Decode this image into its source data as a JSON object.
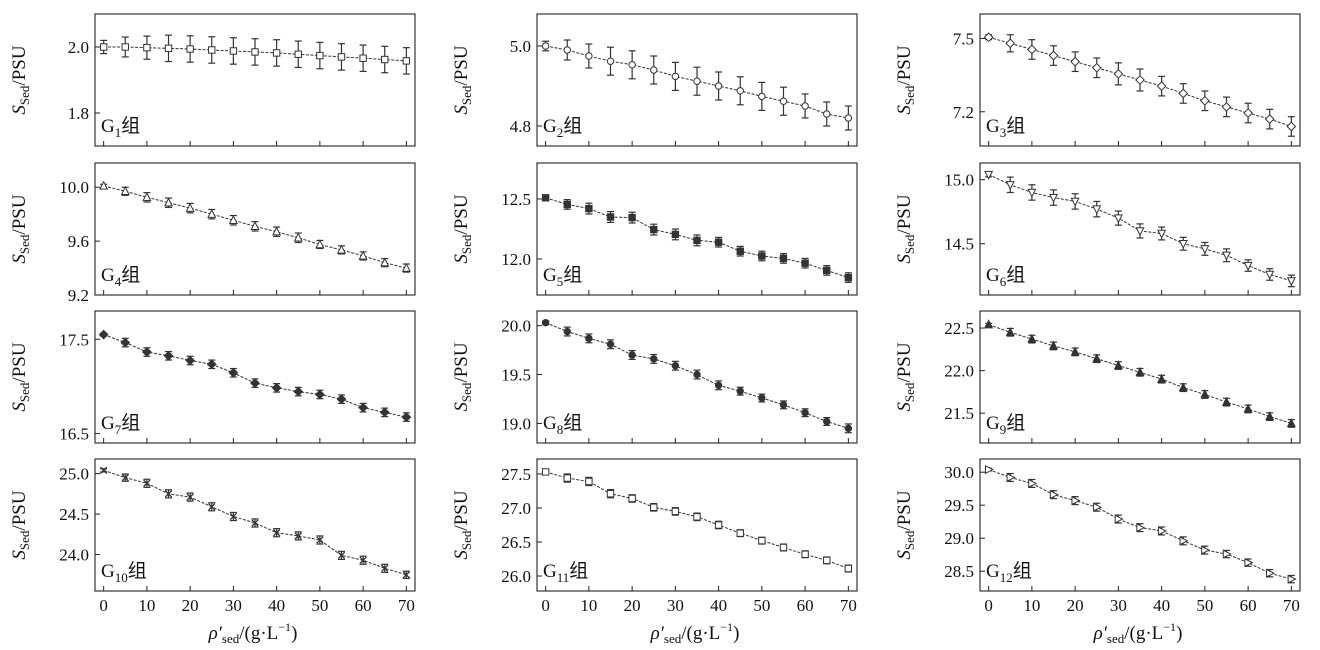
{
  "chart_data": [
    {
      "type": "line",
      "group_label": {
        "main": "G",
        "sub": "1",
        "suffix": "组"
      },
      "ylabel": {
        "main": "S",
        "sub": "Sed",
        "unit": "/PSU"
      },
      "ylim": [
        1.7,
        2.1
      ],
      "yticks": [
        1.8,
        2.0
      ],
      "marker": "square",
      "x": [
        0,
        5,
        10,
        15,
        20,
        25,
        30,
        35,
        40,
        45,
        50,
        55,
        60,
        65,
        70
      ],
      "y": [
        2.0,
        2.0,
        1.998,
        1.996,
        1.994,
        1.991,
        1.988,
        1.985,
        1.982,
        1.978,
        1.974,
        1.97,
        1.966,
        1.962,
        1.958
      ],
      "error": [
        0.02,
        0.03,
        0.035,
        0.04,
        0.04,
        0.04,
        0.04,
        0.04,
        0.04,
        0.04,
        0.04,
        0.04,
        0.04,
        0.04,
        0.04
      ]
    },
    {
      "type": "line",
      "group_label": {
        "main": "G",
        "sub": "2",
        "suffix": "组"
      },
      "ylabel": {
        "main": "S",
        "sub": "Sed",
        "unit": "/PSU"
      },
      "ylim": [
        4.75,
        5.08
      ],
      "yticks": [
        4.8,
        5.0
      ],
      "marker": "circle",
      "x": [
        0,
        5,
        10,
        15,
        20,
        25,
        30,
        35,
        40,
        45,
        50,
        55,
        60,
        65,
        70
      ],
      "y": [
        5.0,
        4.99,
        4.975,
        4.962,
        4.953,
        4.94,
        4.924,
        4.912,
        4.9,
        4.888,
        4.874,
        4.862,
        4.85,
        4.83,
        4.82
      ],
      "error": [
        0.012,
        0.025,
        0.03,
        0.035,
        0.035,
        0.035,
        0.035,
        0.035,
        0.035,
        0.035,
        0.035,
        0.035,
        0.03,
        0.03,
        0.03
      ]
    },
    {
      "type": "line",
      "group_label": {
        "main": "G",
        "sub": "3",
        "suffix": "组"
      },
      "ylabel": {
        "main": "S",
        "sub": "Sed",
        "unit": "/PSU"
      },
      "ylim": [
        7.06,
        7.6
      ],
      "yticks": [
        7.2,
        7.5
      ],
      "marker": "diamond",
      "x": [
        0,
        5,
        10,
        15,
        20,
        25,
        30,
        35,
        40,
        45,
        50,
        55,
        60,
        65,
        70
      ],
      "y": [
        7.505,
        7.48,
        7.455,
        7.43,
        7.405,
        7.38,
        7.355,
        7.33,
        7.305,
        7.275,
        7.245,
        7.22,
        7.195,
        7.17,
        7.14
      ],
      "error": [
        0.01,
        0.035,
        0.04,
        0.04,
        0.04,
        0.04,
        0.045,
        0.045,
        0.04,
        0.04,
        0.04,
        0.04,
        0.04,
        0.04,
        0.04
      ]
    },
    {
      "type": "line",
      "group_label": {
        "main": "G",
        "sub": "4",
        "suffix": "组"
      },
      "ylabel": {
        "main": "S",
        "sub": "Sed",
        "unit": "/PSU"
      },
      "ylim": [
        9.2,
        10.18
      ],
      "yticks": [
        9.2,
        9.6,
        10.0
      ],
      "marker": "triangle-up",
      "x": [
        0,
        5,
        10,
        15,
        20,
        25,
        30,
        35,
        40,
        45,
        50,
        55,
        60,
        65,
        70
      ],
      "y": [
        10.01,
        9.97,
        9.925,
        9.885,
        9.845,
        9.8,
        9.755,
        9.71,
        9.67,
        9.625,
        9.575,
        9.535,
        9.49,
        9.44,
        9.4
      ],
      "error": [
        0.012,
        0.03,
        0.035,
        0.035,
        0.035,
        0.035,
        0.035,
        0.035,
        0.035,
        0.035,
        0.03,
        0.03,
        0.03,
        0.03,
        0.03
      ]
    },
    {
      "type": "line",
      "group_label": {
        "main": "G",
        "sub": "5",
        "suffix": "组"
      },
      "ylabel": {
        "main": "S",
        "sub": "Sed",
        "unit": "/PSU"
      },
      "ylim": [
        11.7,
        12.8
      ],
      "yticks": [
        12.0,
        12.5
      ],
      "marker": "filled-square",
      "x": [
        0,
        5,
        10,
        15,
        20,
        25,
        30,
        35,
        40,
        45,
        50,
        55,
        60,
        65,
        70
      ],
      "y": [
        12.51,
        12.455,
        12.42,
        12.35,
        12.345,
        12.245,
        12.205,
        12.155,
        12.14,
        12.065,
        12.025,
        12.005,
        11.965,
        11.905,
        11.845
      ],
      "error": [
        0.015,
        0.04,
        0.045,
        0.045,
        0.045,
        0.045,
        0.045,
        0.045,
        0.04,
        0.04,
        0.04,
        0.04,
        0.04,
        0.04,
        0.04
      ]
    },
    {
      "type": "line",
      "group_label": {
        "main": "G",
        "sub": "6",
        "suffix": "组"
      },
      "ylabel": {
        "main": "S",
        "sub": "Sed",
        "unit": "/PSU"
      },
      "ylim": [
        14.1,
        15.13
      ],
      "yticks": [
        14.5,
        15.0
      ],
      "marker": "triangle-down",
      "x": [
        0,
        5,
        10,
        15,
        20,
        25,
        30,
        35,
        40,
        45,
        50,
        55,
        60,
        65,
        70
      ],
      "y": [
        15.04,
        14.96,
        14.9,
        14.86,
        14.83,
        14.77,
        14.7,
        14.6,
        14.58,
        14.5,
        14.46,
        14.41,
        14.33,
        14.26,
        14.21
      ],
      "error": [
        0.018,
        0.06,
        0.06,
        0.06,
        0.06,
        0.06,
        0.055,
        0.055,
        0.05,
        0.05,
        0.05,
        0.05,
        0.045,
        0.045,
        0.045
      ]
    },
    {
      "type": "line",
      "group_label": {
        "main": "G",
        "sub": "7",
        "suffix": "组"
      },
      "ylabel": {
        "main": "S",
        "sub": "Sed",
        "unit": "/PSU"
      },
      "ylim": [
        16.4,
        17.8
      ],
      "yticks": [
        16.5,
        17.5
      ],
      "marker": "filled-diamond",
      "x": [
        0,
        5,
        10,
        15,
        20,
        25,
        30,
        35,
        40,
        45,
        50,
        55,
        60,
        65,
        70
      ],
      "y": [
        17.55,
        17.465,
        17.365,
        17.325,
        17.275,
        17.235,
        17.145,
        17.035,
        16.985,
        16.945,
        16.915,
        16.865,
        16.775,
        16.725,
        16.675
      ],
      "error": [
        0.015,
        0.045,
        0.045,
        0.045,
        0.045,
        0.045,
        0.045,
        0.045,
        0.045,
        0.045,
        0.045,
        0.045,
        0.045,
        0.045,
        0.045
      ]
    },
    {
      "type": "line",
      "group_label": {
        "main": "G",
        "sub": "8",
        "suffix": "组"
      },
      "ylabel": {
        "main": "S",
        "sub": "Sed",
        "unit": "/PSU"
      },
      "ylim": [
        18.8,
        20.15
      ],
      "yticks": [
        19.0,
        19.5,
        20.0
      ],
      "marker": "filled-circle",
      "x": [
        0,
        5,
        10,
        15,
        20,
        25,
        30,
        35,
        40,
        45,
        50,
        55,
        60,
        65,
        70
      ],
      "y": [
        20.03,
        19.94,
        19.87,
        19.81,
        19.7,
        19.66,
        19.59,
        19.5,
        19.39,
        19.33,
        19.26,
        19.19,
        19.11,
        19.02,
        18.95
      ],
      "error": [
        0.018,
        0.045,
        0.045,
        0.045,
        0.045,
        0.045,
        0.045,
        0.045,
        0.045,
        0.04,
        0.04,
        0.04,
        0.04,
        0.04,
        0.045
      ]
    },
    {
      "type": "line",
      "group_label": {
        "main": "G",
        "sub": "9",
        "suffix": "组"
      },
      "ylabel": {
        "main": "S",
        "sub": "Sed",
        "unit": "/PSU"
      },
      "ylim": [
        21.15,
        22.7
      ],
      "yticks": [
        21.5,
        22.0,
        22.5
      ],
      "marker": "filled-triangle",
      "x": [
        0,
        5,
        10,
        15,
        20,
        25,
        30,
        35,
        40,
        45,
        50,
        55,
        60,
        65,
        70
      ],
      "y": [
        22.54,
        22.45,
        22.37,
        22.29,
        22.22,
        22.14,
        22.06,
        21.98,
        21.9,
        21.8,
        21.72,
        21.63,
        21.55,
        21.46,
        21.38
      ],
      "error": [
        0.015,
        0.045,
        0.045,
        0.045,
        0.045,
        0.045,
        0.045,
        0.045,
        0.045,
        0.045,
        0.045,
        0.045,
        0.045,
        0.045,
        0.045
      ]
    },
    {
      "type": "line",
      "group_label": {
        "main": "G",
        "sub": "10",
        "suffix": "组"
      },
      "ylabel": {
        "main": "S",
        "sub": "Sed",
        "unit": "/PSU"
      },
      "ylim": [
        23.55,
        25.18
      ],
      "yticks": [
        24.0,
        24.5,
        25.0
      ],
      "marker": "x-cross",
      "x": [
        0,
        5,
        10,
        15,
        20,
        25,
        30,
        35,
        40,
        45,
        50,
        55,
        60,
        65,
        70
      ],
      "y": [
        25.04,
        24.95,
        24.88,
        24.75,
        24.71,
        24.59,
        24.47,
        24.39,
        24.27,
        24.23,
        24.18,
        23.99,
        23.93,
        23.83,
        23.75
      ],
      "error": [
        0.02,
        0.045,
        0.05,
        0.05,
        0.05,
        0.05,
        0.05,
        0.05,
        0.05,
        0.05,
        0.05,
        0.05,
        0.05,
        0.05,
        0.045
      ]
    },
    {
      "type": "line",
      "group_label": {
        "main": "G",
        "sub": "11",
        "suffix": "组"
      },
      "ylabel": {
        "main": "S",
        "sub": "Sed",
        "unit": "/PSU"
      },
      "ylim": [
        25.78,
        27.72
      ],
      "yticks": [
        26.0,
        26.5,
        27.0,
        27.5
      ],
      "marker": "small-square",
      "x": [
        0,
        5,
        10,
        15,
        20,
        25,
        30,
        35,
        40,
        45,
        50,
        55,
        60,
        65,
        70
      ],
      "y": [
        27.53,
        27.44,
        27.39,
        27.21,
        27.14,
        27.01,
        26.95,
        26.87,
        26.75,
        26.63,
        26.52,
        26.42,
        26.32,
        26.23,
        26.11
      ],
      "error": [
        0.015,
        0.06,
        0.06,
        0.06,
        0.055,
        0.055,
        0.055,
        0.055,
        0.055,
        0.05,
        0.05,
        0.05,
        0.05,
        0.05,
        0.05
      ]
    },
    {
      "type": "line",
      "group_label": {
        "main": "G",
        "sub": "12",
        "suffix": "组"
      },
      "ylabel": {
        "main": "S",
        "sub": "Sed",
        "unit": "/PSU"
      },
      "ylim": [
        28.2,
        30.2
      ],
      "yticks": [
        28.5,
        29.0,
        29.5,
        30.0
      ],
      "marker": "open-triangle-right",
      "x": [
        0,
        5,
        10,
        15,
        20,
        25,
        30,
        35,
        40,
        45,
        50,
        55,
        60,
        65,
        70
      ],
      "y": [
        30.04,
        29.92,
        29.83,
        29.66,
        29.57,
        29.47,
        29.29,
        29.16,
        29.11,
        28.96,
        28.82,
        28.76,
        28.63,
        28.47,
        28.38
      ],
      "error": [
        0.02,
        0.06,
        0.06,
        0.06,
        0.06,
        0.06,
        0.06,
        0.06,
        0.06,
        0.06,
        0.06,
        0.055,
        0.055,
        0.055,
        0.055
      ]
    }
  ],
  "shared": {
    "xlim": [
      -2,
      72
    ],
    "xticks": [
      0,
      10,
      20,
      30,
      40,
      50,
      60,
      70
    ],
    "xlabel": {
      "rho": "ρ′",
      "sub": "sed",
      "unit": "/(g·L",
      "exp": "−1",
      "close": ")"
    }
  }
}
